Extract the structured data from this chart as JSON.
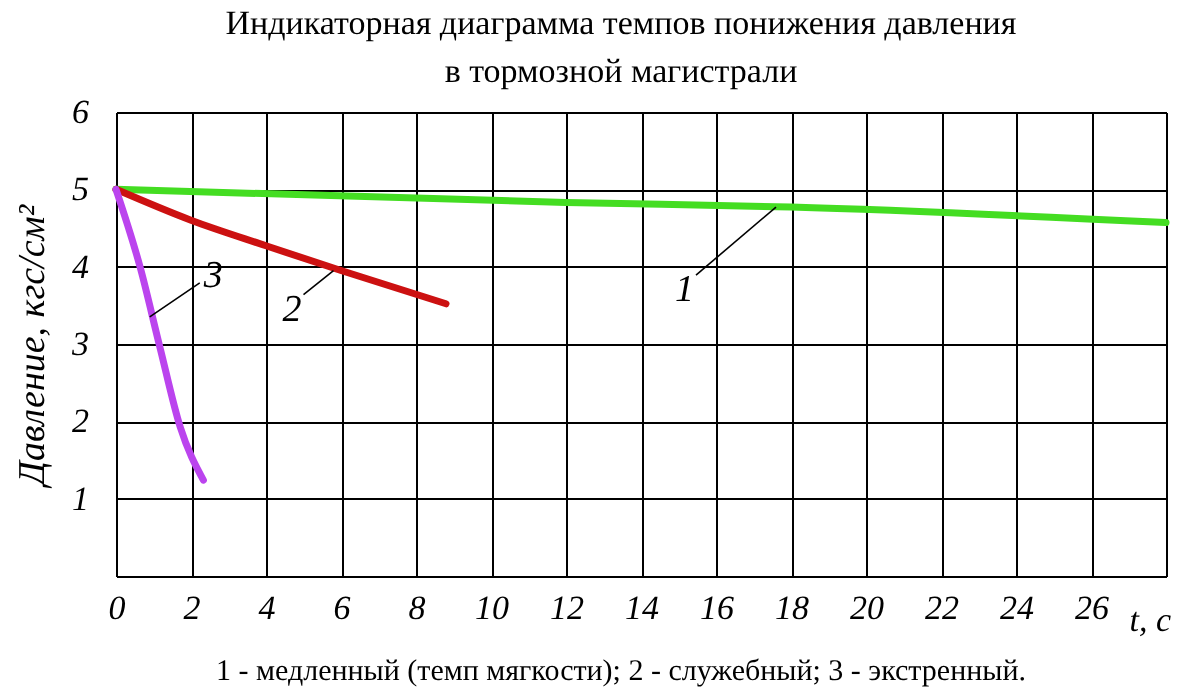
{
  "chart_data": {
    "type": "line",
    "title": "Индикаторная диаграмма темпов понижения давления в тормозной магистрали",
    "xlabel": "t, c",
    "ylabel": "Давление, кгс/см²",
    "xlim": [
      0,
      28
    ],
    "ylim": [
      0,
      6
    ],
    "xticks": [
      0,
      2,
      4,
      6,
      8,
      10,
      12,
      14,
      16,
      18,
      20,
      22,
      24,
      26,
      {
        "value": 28,
        "label": null
      }
    ],
    "yticks": [
      {
        "value": 0,
        "label": null
      },
      1,
      2,
      3,
      4,
      5,
      6
    ],
    "grid": true,
    "series": [
      {
        "color": "#44dd22",
        "x": [
          0,
          12,
          18,
          28
        ],
        "values": [
          5,
          4.83,
          4.77,
          4.57
        ]
      },
      {
        "color": "#cc1111",
        "x": [
          0,
          2,
          4,
          6,
          8.8
        ],
        "values": [
          5,
          4.6,
          4.27,
          3.95,
          3.52
        ]
      },
      {
        "color": "#bb44ee",
        "x": [
          0,
          0.64,
          1.17,
          1.71,
          2.33
        ],
        "values": [
          5,
          4.0,
          2.96,
          1.93,
          1.24
        ]
      }
    ],
    "annotations": [
      {
        "text": "1",
        "x": 17.6,
        "y": 4.77
      },
      {
        "text": "2",
        "x": 5.8,
        "y": 3.95
      },
      {
        "text": "3",
        "x": 0.9,
        "y": 3.35
      },
      "1 - медленный (темп мягкости); 2 - служебный; 3 - экстренный."
    ]
  }
}
